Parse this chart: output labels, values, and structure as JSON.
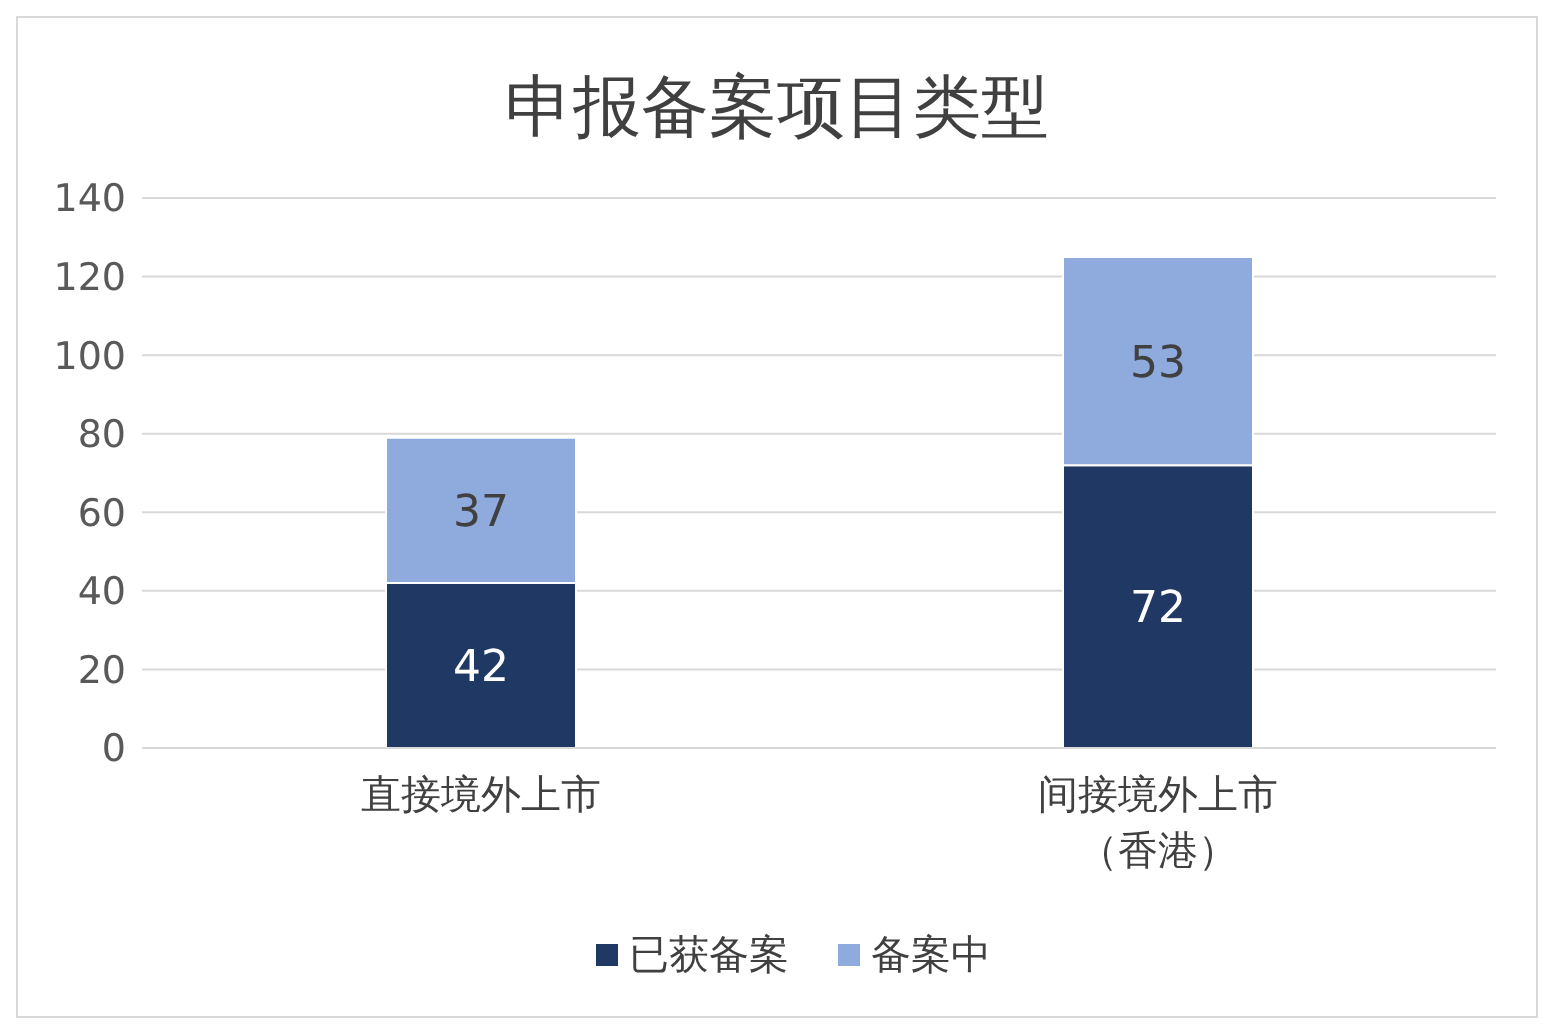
{
  "chart_data": {
    "type": "bar",
    "title": "申报备案项目类型",
    "categories": [
      "直接境外上市",
      "间接境外上市（香港）"
    ],
    "stacked": true,
    "data_labels": true,
    "grid": "y",
    "legend": "bottom",
    "ylim": [
      0,
      140
    ],
    "yticks": [
      0,
      20,
      40,
      60,
      80,
      100,
      120,
      140
    ],
    "series": [
      {
        "name": "已获备案",
        "color": "#203864",
        "values": [
          42,
          72
        ]
      },
      {
        "name": "备案中",
        "color": "#8faadc",
        "values": [
          37,
          53
        ]
      }
    ]
  }
}
